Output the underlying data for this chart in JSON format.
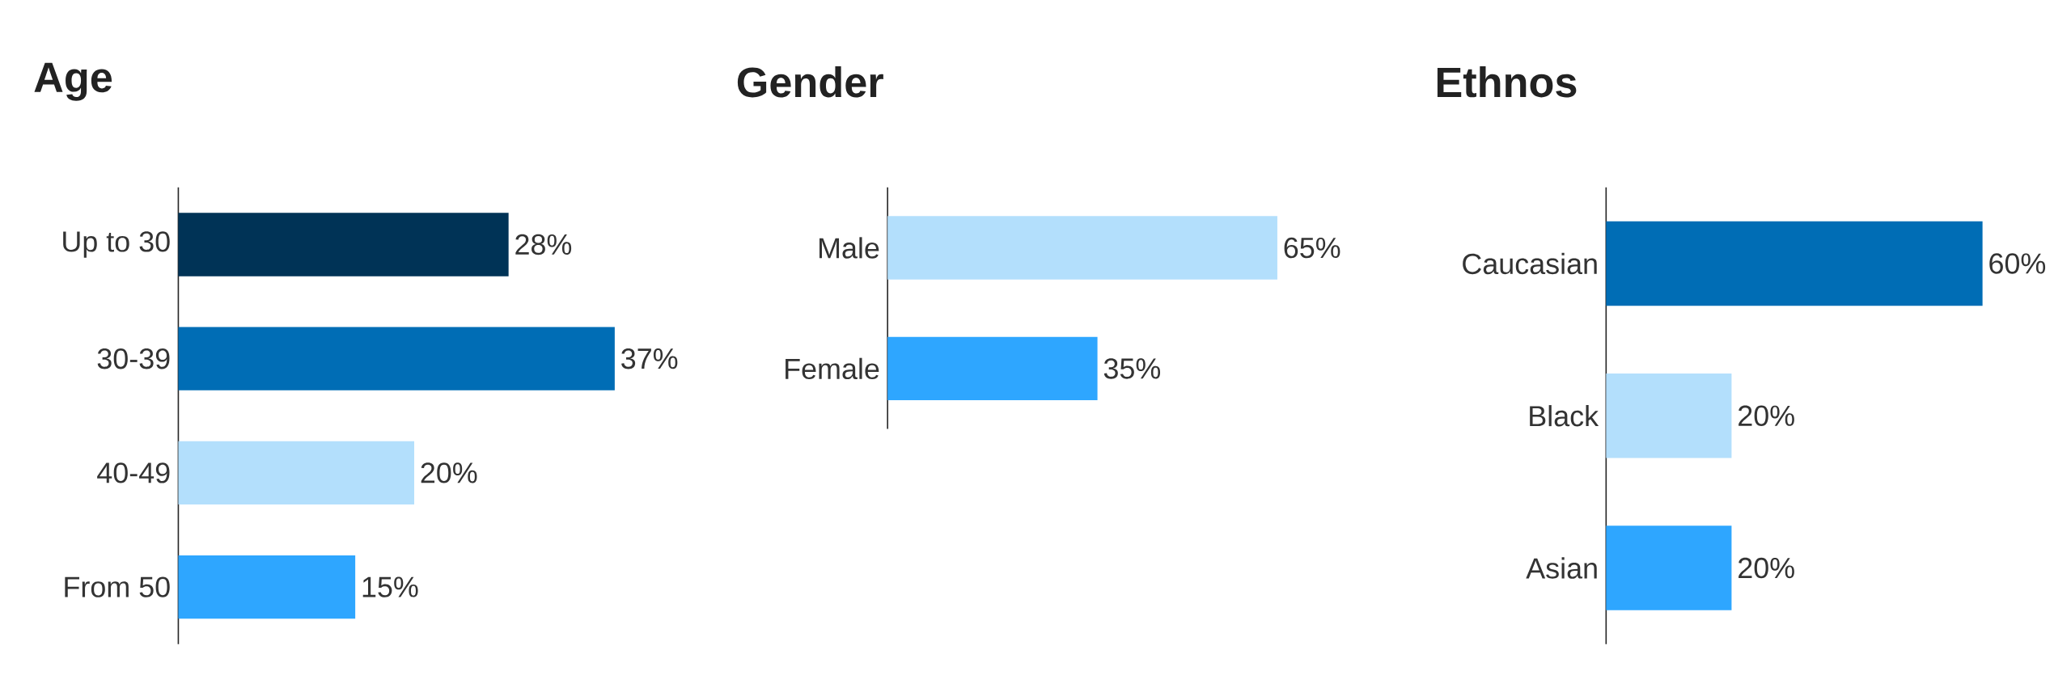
{
  "chart_data": [
    {
      "type": "bar",
      "orientation": "horizontal",
      "title": "Age",
      "categories": [
        "Up to 30",
        "30-39",
        "40-49",
        "From 50"
      ],
      "values": [
        28,
        37,
        20,
        15
      ],
      "value_labels": [
        "28%",
        "37%",
        "20%",
        "15%"
      ],
      "colors": [
        "#003356",
        "#006db5",
        "#b3dffc",
        "#2ea6ff"
      ],
      "tick_labels": "y"
    },
    {
      "type": "bar",
      "orientation": "horizontal",
      "title": "Gender",
      "categories": [
        "Male",
        "Female"
      ],
      "values": [
        65,
        35
      ],
      "value_labels": [
        "65%",
        "35%"
      ],
      "colors": [
        "#b3dffc",
        "#2ea6ff"
      ],
      "tick_labels": "y"
    },
    {
      "type": "bar",
      "orientation": "horizontal",
      "title": "Ethnos",
      "categories": [
        "Caucasian",
        "Black",
        "Asian"
      ],
      "values": [
        60,
        20,
        20
      ],
      "value_labels": [
        "60%",
        "20%",
        "20%"
      ],
      "colors": [
        "#006db5",
        "#b3dffc",
        "#2ea6ff"
      ],
      "tick_labels": "y"
    }
  ]
}
